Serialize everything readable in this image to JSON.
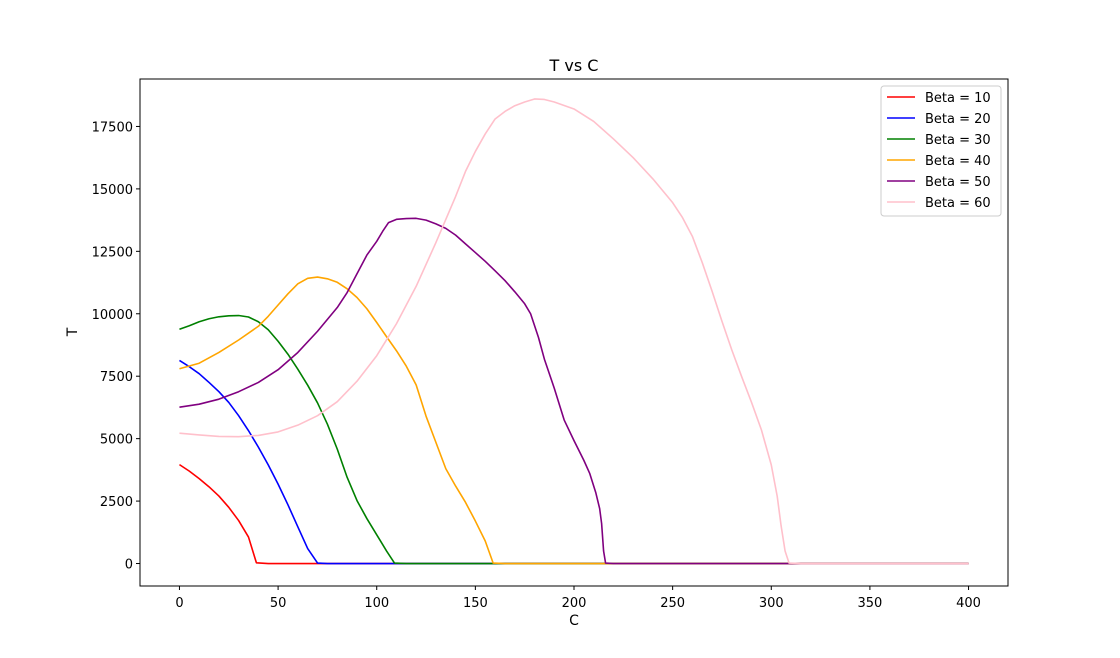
{
  "chart_data": {
    "type": "line",
    "title": "T vs C",
    "xlabel": "C",
    "ylabel": "T",
    "xlim": [
      -20,
      420
    ],
    "ylim": [
      -900,
      19400
    ],
    "xticks": [
      0,
      50,
      100,
      150,
      200,
      250,
      300,
      350,
      400
    ],
    "yticks": [
      0,
      2500,
      5000,
      7500,
      10000,
      12500,
      15000,
      17500
    ],
    "grid": false,
    "legend_position": "top-right",
    "series": [
      {
        "name": "Beta = 10",
        "color": "#ff0000",
        "points": [
          [
            0,
            3960
          ],
          [
            5,
            3700
          ],
          [
            10,
            3400
          ],
          [
            15,
            3070
          ],
          [
            20,
            2700
          ],
          [
            25,
            2250
          ],
          [
            30,
            1720
          ],
          [
            35,
            1060
          ],
          [
            39,
            30
          ],
          [
            45,
            0
          ],
          [
            100,
            0
          ],
          [
            200,
            0
          ],
          [
            300,
            0
          ],
          [
            400,
            0
          ]
        ]
      },
      {
        "name": "Beta = 20",
        "color": "#0000ff",
        "points": [
          [
            0,
            8130
          ],
          [
            5,
            7880
          ],
          [
            10,
            7600
          ],
          [
            15,
            7250
          ],
          [
            20,
            6880
          ],
          [
            25,
            6450
          ],
          [
            30,
            5920
          ],
          [
            35,
            5320
          ],
          [
            40,
            4660
          ],
          [
            45,
            3950
          ],
          [
            50,
            3180
          ],
          [
            55,
            2350
          ],
          [
            60,
            1470
          ],
          [
            65,
            600
          ],
          [
            70,
            20
          ],
          [
            75,
            0
          ],
          [
            100,
            0
          ],
          [
            200,
            0
          ],
          [
            300,
            0
          ],
          [
            400,
            0
          ]
        ]
      },
      {
        "name": "Beta = 30",
        "color": "#008000",
        "points": [
          [
            0,
            9380
          ],
          [
            5,
            9520
          ],
          [
            10,
            9680
          ],
          [
            15,
            9800
          ],
          [
            20,
            9880
          ],
          [
            25,
            9920
          ],
          [
            30,
            9930
          ],
          [
            35,
            9870
          ],
          [
            40,
            9680
          ],
          [
            45,
            9360
          ],
          [
            50,
            8900
          ],
          [
            55,
            8380
          ],
          [
            60,
            7780
          ],
          [
            65,
            7140
          ],
          [
            70,
            6430
          ],
          [
            75,
            5580
          ],
          [
            80,
            4580
          ],
          [
            85,
            3450
          ],
          [
            90,
            2520
          ],
          [
            95,
            1800
          ],
          [
            100,
            1150
          ],
          [
            105,
            500
          ],
          [
            109,
            20
          ],
          [
            115,
            0
          ],
          [
            200,
            0
          ],
          [
            300,
            0
          ],
          [
            400,
            0
          ]
        ]
      },
      {
        "name": "Beta = 40",
        "color": "#ffa500",
        "points": [
          [
            0,
            7800
          ],
          [
            10,
            8020
          ],
          [
            20,
            8450
          ],
          [
            30,
            8950
          ],
          [
            40,
            9500
          ],
          [
            45,
            9900
          ],
          [
            50,
            10350
          ],
          [
            55,
            10800
          ],
          [
            60,
            11200
          ],
          [
            65,
            11420
          ],
          [
            70,
            11470
          ],
          [
            75,
            11400
          ],
          [
            80,
            11260
          ],
          [
            85,
            11000
          ],
          [
            90,
            10650
          ],
          [
            95,
            10200
          ],
          [
            100,
            9650
          ],
          [
            105,
            9080
          ],
          [
            110,
            8520
          ],
          [
            115,
            7900
          ],
          [
            120,
            7150
          ],
          [
            125,
            5900
          ],
          [
            130,
            4850
          ],
          [
            135,
            3800
          ],
          [
            140,
            3100
          ],
          [
            145,
            2450
          ],
          [
            150,
            1700
          ],
          [
            155,
            900
          ],
          [
            159,
            20
          ],
          [
            165,
            0
          ],
          [
            300,
            0
          ],
          [
            400,
            0
          ]
        ]
      },
      {
        "name": "Beta = 50",
        "color": "#800080",
        "points": [
          [
            0,
            6260
          ],
          [
            10,
            6380
          ],
          [
            20,
            6580
          ],
          [
            30,
            6880
          ],
          [
            40,
            7250
          ],
          [
            50,
            7760
          ],
          [
            60,
            8450
          ],
          [
            70,
            9300
          ],
          [
            80,
            10250
          ],
          [
            85,
            10850
          ],
          [
            90,
            11600
          ],
          [
            95,
            12350
          ],
          [
            100,
            12900
          ],
          [
            103,
            13300
          ],
          [
            106,
            13650
          ],
          [
            110,
            13780
          ],
          [
            115,
            13810
          ],
          [
            120,
            13820
          ],
          [
            125,
            13750
          ],
          [
            130,
            13600
          ],
          [
            135,
            13420
          ],
          [
            140,
            13150
          ],
          [
            145,
            12800
          ],
          [
            150,
            12450
          ],
          [
            155,
            12100
          ],
          [
            160,
            11720
          ],
          [
            165,
            11330
          ],
          [
            170,
            10880
          ],
          [
            175,
            10400
          ],
          [
            178,
            10000
          ],
          [
            182,
            9050
          ],
          [
            185,
            8180
          ],
          [
            190,
            7020
          ],
          [
            195,
            5750
          ],
          [
            200,
            4920
          ],
          [
            205,
            4130
          ],
          [
            208,
            3600
          ],
          [
            211,
            2850
          ],
          [
            213,
            2200
          ],
          [
            214,
            1600
          ],
          [
            215,
            500
          ],
          [
            216,
            20
          ],
          [
            220,
            0
          ],
          [
            300,
            0
          ],
          [
            400,
            0
          ]
        ]
      },
      {
        "name": "Beta = 60",
        "color": "#ffc0cb",
        "points": [
          [
            0,
            5220
          ],
          [
            10,
            5150
          ],
          [
            20,
            5090
          ],
          [
            30,
            5080
          ],
          [
            40,
            5130
          ],
          [
            50,
            5270
          ],
          [
            60,
            5540
          ],
          [
            70,
            5920
          ],
          [
            80,
            6480
          ],
          [
            90,
            7300
          ],
          [
            100,
            8320
          ],
          [
            110,
            9600
          ],
          [
            120,
            11100
          ],
          [
            130,
            12850
          ],
          [
            140,
            14700
          ],
          [
            145,
            15700
          ],
          [
            150,
            16500
          ],
          [
            155,
            17200
          ],
          [
            160,
            17800
          ],
          [
            165,
            18100
          ],
          [
            170,
            18330
          ],
          [
            175,
            18480
          ],
          [
            180,
            18600
          ],
          [
            185,
            18580
          ],
          [
            190,
            18480
          ],
          [
            200,
            18200
          ],
          [
            210,
            17700
          ],
          [
            220,
            17000
          ],
          [
            230,
            16250
          ],
          [
            240,
            15400
          ],
          [
            250,
            14450
          ],
          [
            255,
            13850
          ],
          [
            260,
            13100
          ],
          [
            265,
            12050
          ],
          [
            270,
            10900
          ],
          [
            275,
            9700
          ],
          [
            280,
            8550
          ],
          [
            285,
            7480
          ],
          [
            290,
            6450
          ],
          [
            295,
            5350
          ],
          [
            300,
            3950
          ],
          [
            303,
            2700
          ],
          [
            305,
            1500
          ],
          [
            307,
            500
          ],
          [
            309,
            20
          ],
          [
            315,
            0
          ],
          [
            350,
            0
          ],
          [
            400,
            0
          ]
        ]
      }
    ]
  }
}
